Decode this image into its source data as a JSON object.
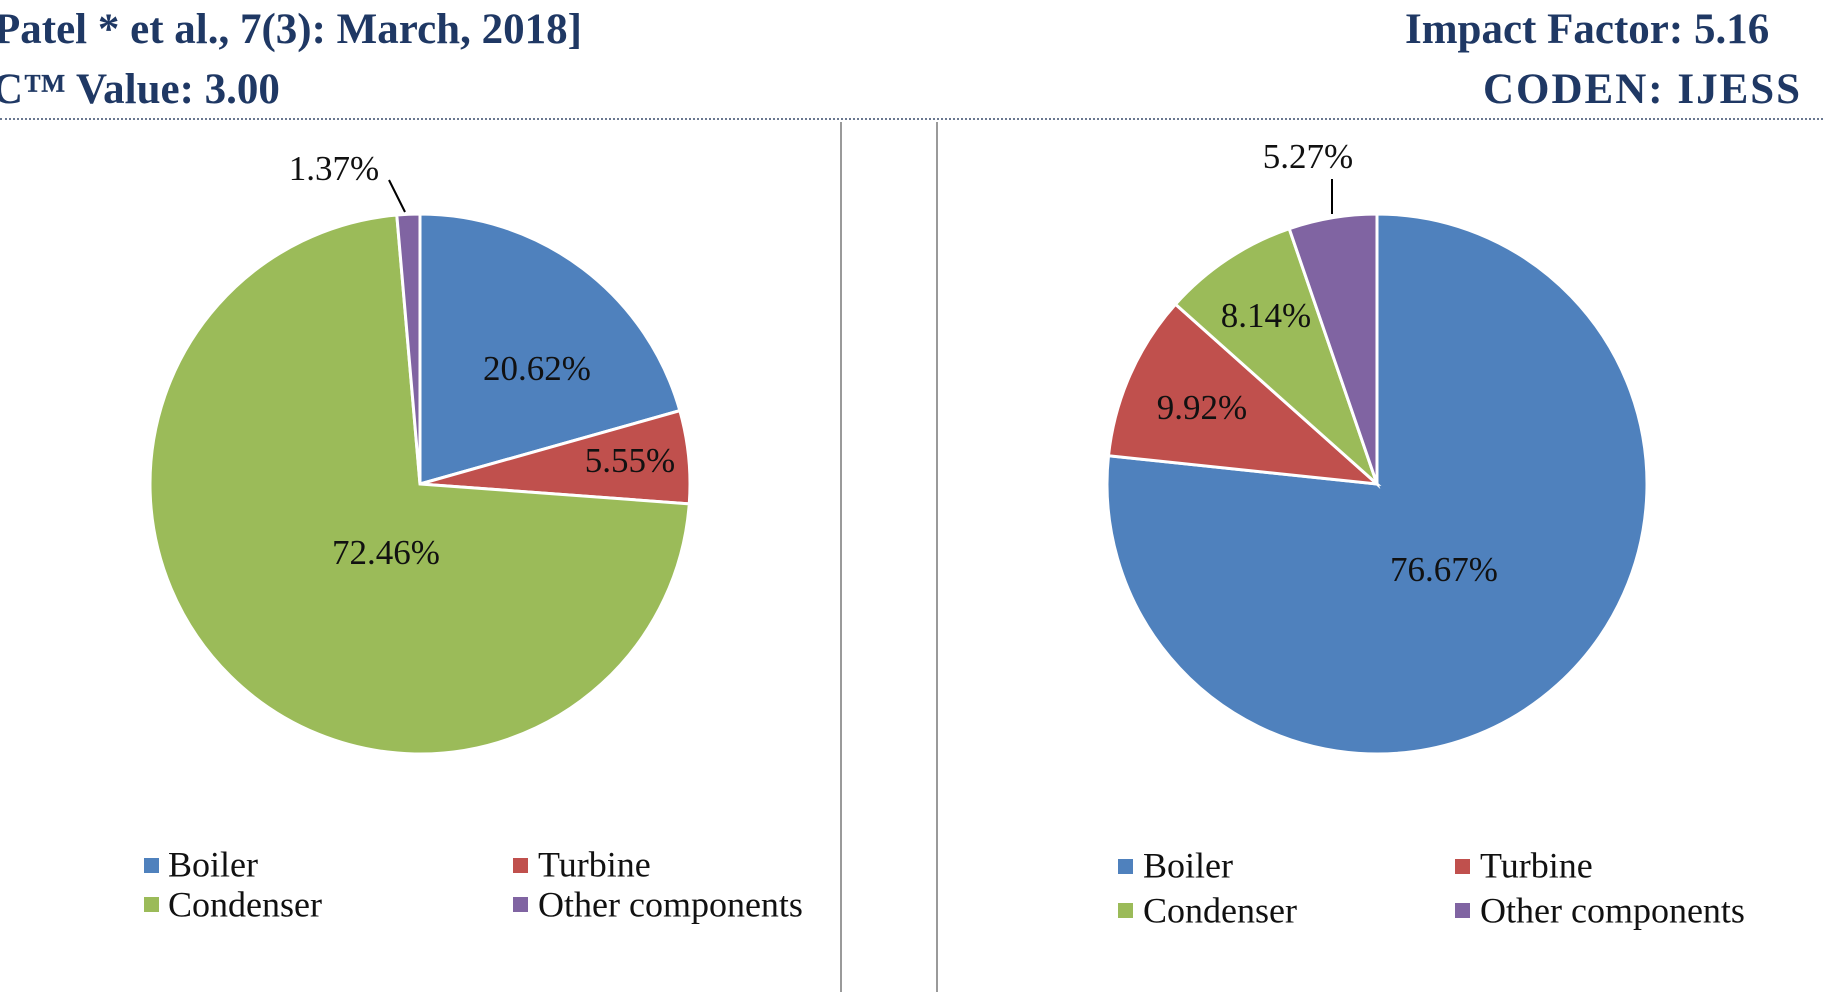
{
  "header": {
    "left_line1": "Patel * et al., 7(3): March, 2018]",
    "left_line2": "C™ Value: 3.00",
    "right_line1": "Impact Factor: 5.16",
    "right_line2": "CODEN: IJESS"
  },
  "chart_data": [
    {
      "type": "pie",
      "title": "",
      "categories": [
        "Boiler",
        "Turbine",
        "Condenser",
        "Other components"
      ],
      "values": [
        20.62,
        5.55,
        72.46,
        1.37
      ],
      "labels": [
        "20.62%",
        "5.55%",
        "72.46%",
        "1.37%"
      ],
      "colors": [
        "#4f81bd",
        "#c0504d",
        "#9bbb59",
        "#8064a2"
      ],
      "legend": [
        "Boiler",
        "Turbine",
        "Condenser",
        "Other components"
      ],
      "legend_position": "bottom"
    },
    {
      "type": "pie",
      "title": "",
      "categories": [
        "Boiler",
        "Turbine",
        "Condenser",
        "Other components"
      ],
      "values": [
        76.67,
        9.92,
        8.14,
        5.27
      ],
      "labels": [
        "76.67%",
        "9.92%",
        "8.14%",
        "5.27%"
      ],
      "colors": [
        "#4f81bd",
        "#c0504d",
        "#9bbb59",
        "#8064a2"
      ],
      "legend": [
        "Boiler",
        "Turbine",
        "Condenser",
        "Other components"
      ],
      "legend_position": "bottom"
    }
  ]
}
